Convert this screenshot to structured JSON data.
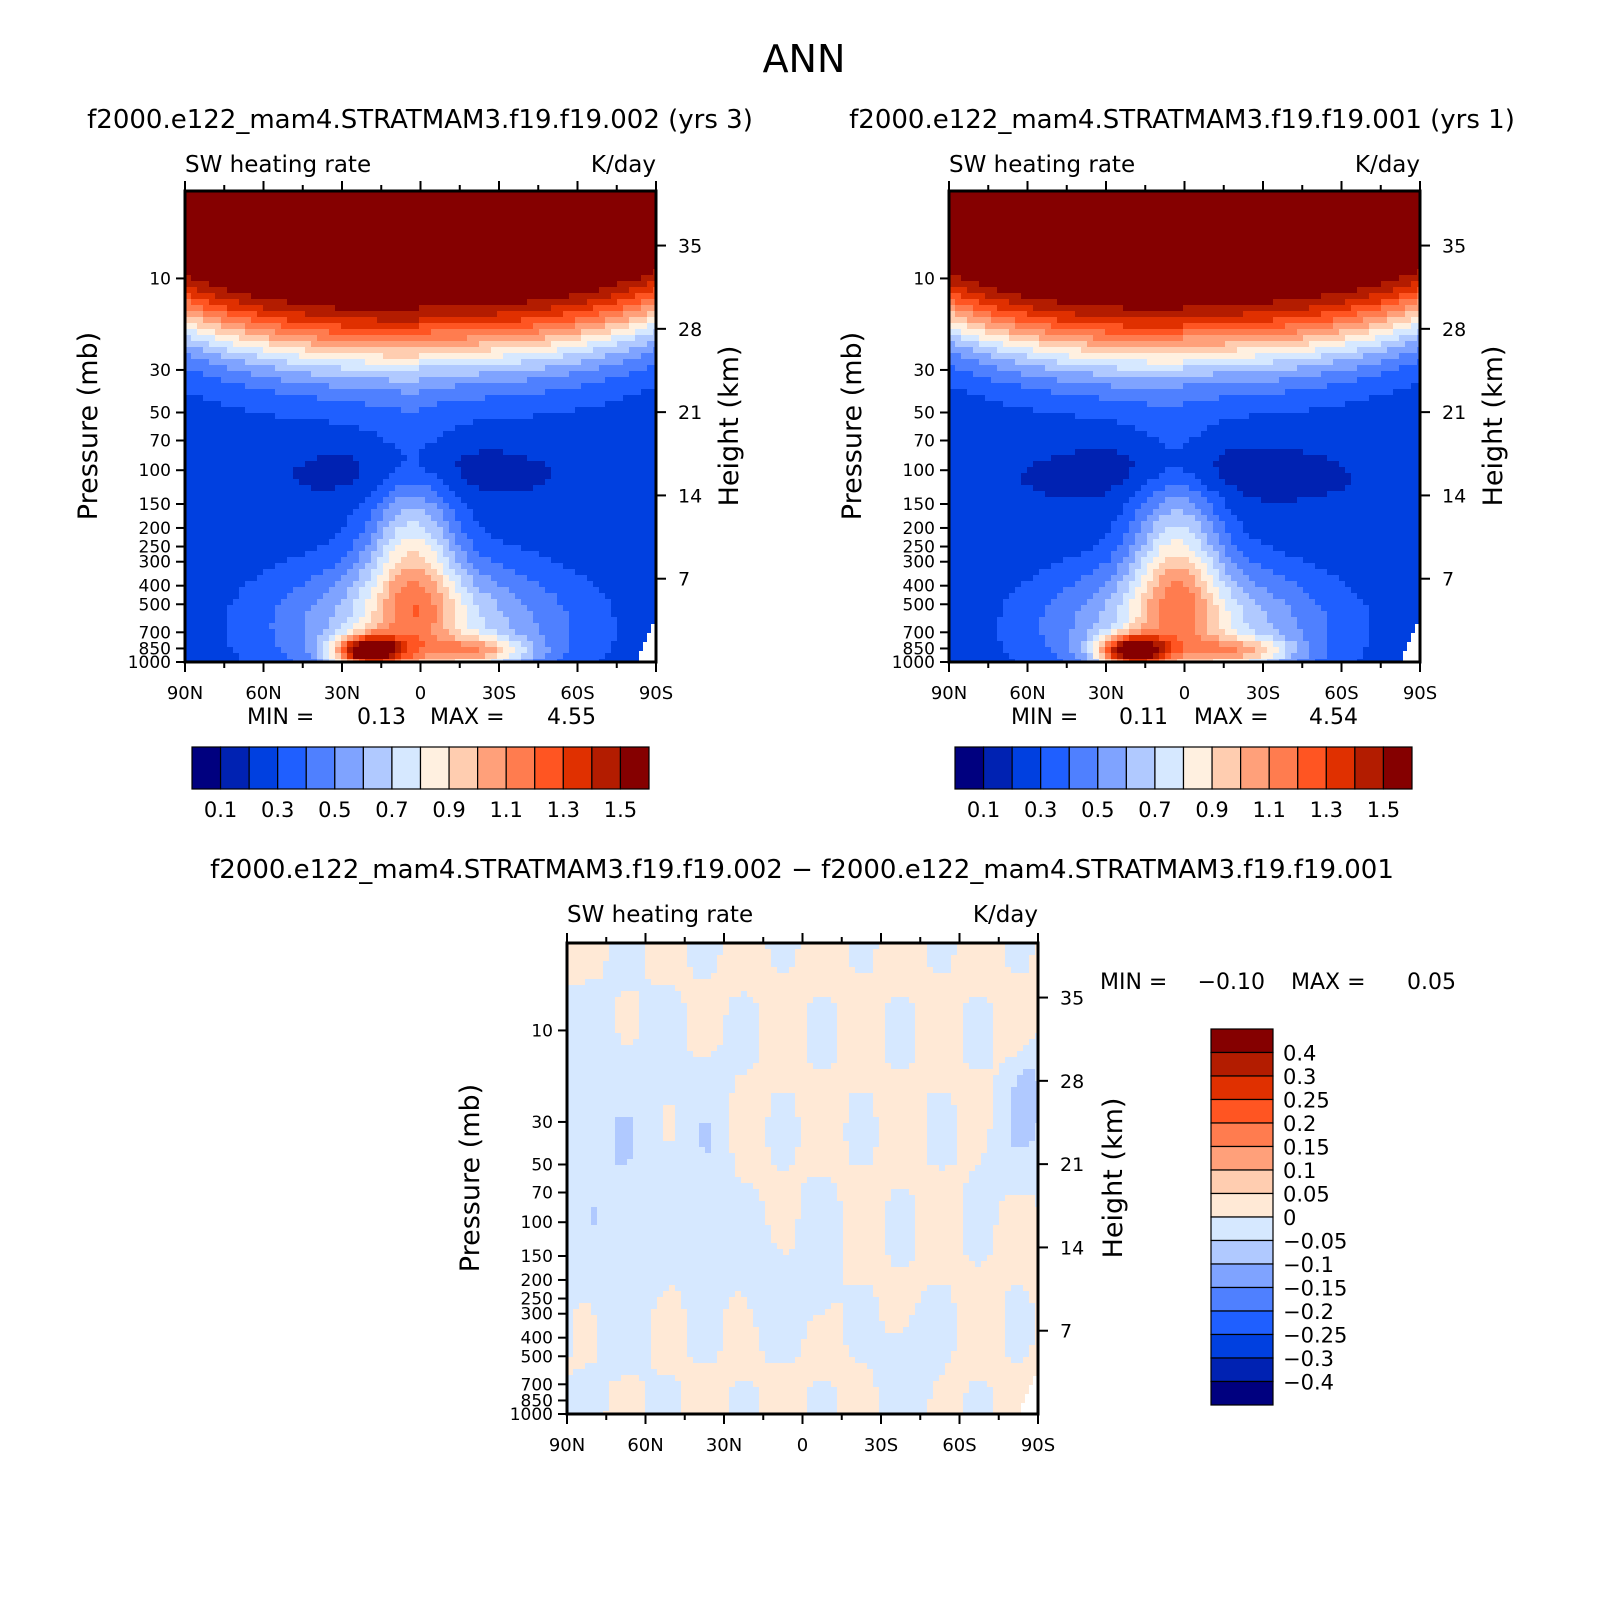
{
  "page": {
    "title": "ANN"
  },
  "colors": {
    "panel_scale": [
      "#00007f",
      "#0022b2",
      "#0040e0",
      "#1f5fff",
      "#4f80ff",
      "#7fa3ff",
      "#b0c9ff",
      "#d6e8ff",
      "#fff0e0",
      "#ffcdb0",
      "#ffa07a",
      "#ff7c4f",
      "#ff5522",
      "#e03000",
      "#b31c00",
      "#850000"
    ],
    "diff_scale": [
      "#00007f",
      "#0022b2",
      "#0040e0",
      "#1f5fff",
      "#4f80ff",
      "#7fa3ff",
      "#b0c9ff",
      "#d6e8ff",
      "#ffe9d6",
      "#ffcdb0",
      "#ffa07a",
      "#ff7c4f",
      "#ff5522",
      "#e03000",
      "#b31c00",
      "#850000"
    ]
  },
  "chart_data": [
    {
      "id": "case1",
      "type": "contour",
      "subtitle": "f2000.e122_mam4.STRATMAM3.f19.f19.002 (yrs 3)",
      "left_label": "SW heating rate",
      "right_label": "K/day",
      "xlabel": "",
      "ylabel": "Pressure (mb)",
      "ylabel_right": "Height (km)",
      "x_tick_labels": [
        "90N",
        "60N",
        "30N",
        "0",
        "30S",
        "60S",
        "90S"
      ],
      "x_range": [
        90,
        -90
      ],
      "y_ticks": [
        10,
        30,
        50,
        70,
        100,
        150,
        200,
        250,
        300,
        400,
        500,
        700,
        850,
        1000
      ],
      "y_range_mb": [
        3.5,
        1000
      ],
      "height_ticks_km": [
        35,
        28,
        21,
        14,
        7
      ],
      "min_label": "MIN =",
      "min_value": "0.13",
      "max_label": "MAX =",
      "max_value": "4.55",
      "colorbar_levels": [
        "0.1",
        "0.3",
        "0.5",
        "0.7",
        "0.9",
        "1.1",
        "1.3",
        "1.5"
      ]
    },
    {
      "id": "case2",
      "type": "contour",
      "subtitle": "f2000.e122_mam4.STRATMAM3.f19.f19.001 (yrs 1)",
      "left_label": "SW heating rate",
      "right_label": "K/day",
      "xlabel": "",
      "ylabel": "Pressure (mb)",
      "ylabel_right": "Height (km)",
      "x_tick_labels": [
        "90N",
        "60N",
        "30N",
        "0",
        "30S",
        "60S",
        "90S"
      ],
      "x_range": [
        90,
        -90
      ],
      "y_ticks": [
        10,
        30,
        50,
        70,
        100,
        150,
        200,
        250,
        300,
        400,
        500,
        700,
        850,
        1000
      ],
      "y_range_mb": [
        3.5,
        1000
      ],
      "height_ticks_km": [
        35,
        28,
        21,
        14,
        7
      ],
      "min_label": "MIN =",
      "min_value": "0.11",
      "max_label": "MAX =",
      "max_value": "4.54",
      "colorbar_levels": [
        "0.1",
        "0.3",
        "0.5",
        "0.7",
        "0.9",
        "1.1",
        "1.3",
        "1.5"
      ]
    },
    {
      "id": "diff",
      "type": "contour",
      "subtitle": "f2000.e122_mam4.STRATMAM3.f19.f19.002 − f2000.e122_mam4.STRATMAM3.f19.f19.001",
      "left_label": "SW heating rate",
      "right_label": "K/day",
      "xlabel": "",
      "ylabel": "Pressure (mb)",
      "ylabel_right": "Height (km)",
      "x_tick_labels": [
        "90N",
        "60N",
        "30N",
        "0",
        "30S",
        "60S",
        "90S"
      ],
      "x_range": [
        90,
        -90
      ],
      "y_ticks": [
        10,
        30,
        50,
        70,
        100,
        150,
        200,
        250,
        300,
        400,
        500,
        700,
        850,
        1000
      ],
      "y_range_mb": [
        3.5,
        1000
      ],
      "height_ticks_km": [
        35,
        28,
        21,
        14,
        7
      ],
      "min_label": "MIN =",
      "min_value": "−0.10",
      "max_label": "MAX =",
      "max_value": "0.05",
      "colorbar_levels": [
        "0.4",
        "0.3",
        "0.25",
        "0.2",
        "0.15",
        "0.1",
        "0.05",
        "0",
        "−0.05",
        "−0.1",
        "−0.15",
        "−0.2",
        "−0.25",
        "−0.3",
        "−0.4"
      ]
    }
  ]
}
